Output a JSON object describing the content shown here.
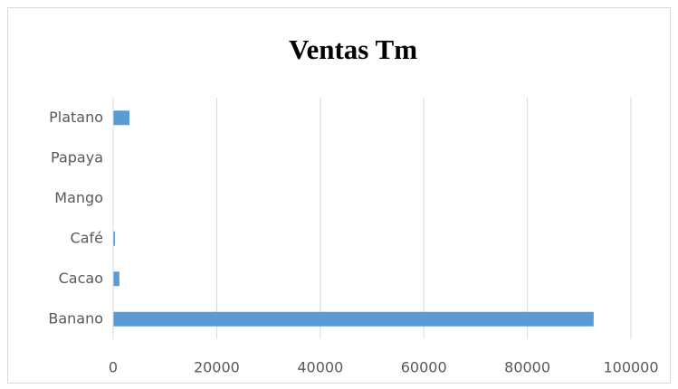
{
  "chart_data": {
    "type": "bar",
    "orientation": "horizontal",
    "title": "Ventas Tm",
    "categories": [
      "Banano",
      "Cacao",
      "Café",
      "Mango",
      "Papaya",
      "Platano"
    ],
    "values": [
      92800,
      1200,
      350,
      0,
      0,
      3150
    ],
    "color": "#5b9bd5",
    "xlim": [
      0,
      100000
    ],
    "xticks": [
      0,
      20000,
      40000,
      60000,
      80000,
      100000
    ],
    "grid": true
  }
}
